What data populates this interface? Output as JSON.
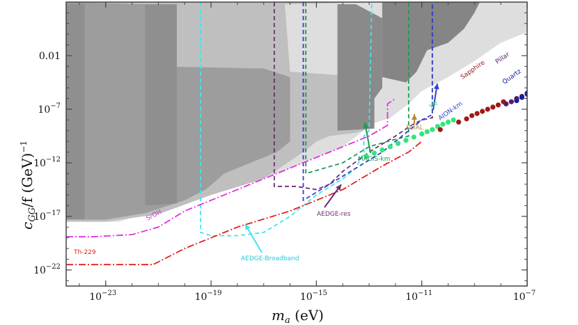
{
  "chart_data": {
    "type": "line",
    "xlabel_main": "m",
    "xlabel_sub": "a",
    "xlabel_unit": " (eV)",
    "ylabel_main": "c",
    "ylabel_sub": "GG",
    "ylabel_unit": "/f (GeV)",
    "ylabel_exp": "−1",
    "x_log_range": [
      -24.5,
      -7
    ],
    "y_log_range": [
      -23.5,
      3
    ],
    "x_ticks": [
      {
        "exp": -23,
        "base": "10",
        "sup": "−23"
      },
      {
        "exp": -19,
        "base": "10",
        "sup": "−19"
      },
      {
        "exp": -15,
        "base": "10",
        "sup": "−15"
      },
      {
        "exp": -11,
        "base": "10",
        "sup": "−11"
      },
      {
        "exp": -7,
        "base": "10",
        "sup": "−7"
      }
    ],
    "y_ticks": [
      {
        "exp": -2,
        "text": "0.01",
        "base": "",
        "sup": ""
      },
      {
        "exp": -7,
        "text": "",
        "base": "10",
        "sup": "−7"
      },
      {
        "exp": -12,
        "text": "",
        "base": "10",
        "sup": "−12"
      },
      {
        "exp": -17,
        "text": "",
        "base": "10",
        "sup": "−17"
      },
      {
        "exp": -22,
        "text": "",
        "base": "10",
        "sup": "−22"
      }
    ],
    "excluded_regions": [
      {
        "name": "light-excluded",
        "color": "#dedede",
        "points": [
          [
            -24.5,
            -17.5
          ],
          [
            -22.5,
            -17.5
          ],
          [
            -20.5,
            -16
          ],
          [
            -18.5,
            -14.5
          ],
          [
            -16.5,
            -13
          ],
          [
            -14,
            -10.5
          ],
          [
            -13.2,
            -9
          ],
          [
            -12.8,
            -8.3
          ],
          [
            -12.2,
            -7.8
          ],
          [
            -11.5,
            -6.5
          ],
          [
            -11,
            -5.3
          ],
          [
            -10,
            -4
          ],
          [
            -9,
            -2.5
          ],
          [
            -8,
            -0.8
          ],
          [
            -7,
            0.2
          ],
          [
            -7,
            3
          ],
          [
            -24.5,
            3
          ]
        ]
      },
      {
        "name": "medium-excluded",
        "color": "#bfbfbf",
        "points": [
          [
            -24.5,
            -17.5
          ],
          [
            -23,
            -17.5
          ],
          [
            -21,
            -16.8
          ],
          [
            -19,
            -15
          ],
          [
            -17,
            -13.5
          ],
          [
            -15.5,
            -11
          ],
          [
            -15,
            -10
          ],
          [
            -14.5,
            -9.5
          ],
          [
            -13.5,
            -9.2
          ],
          [
            -13,
            -8.8
          ],
          [
            -13,
            -4
          ],
          [
            -16,
            -3.5
          ],
          [
            -16.2,
            2.8
          ],
          [
            -12.5,
            3
          ],
          [
            -24.5,
            3
          ]
        ]
      },
      {
        "name": "dark-excluded",
        "color": "#9d9d9d",
        "points": [
          [
            -24.5,
            -17.3
          ],
          [
            -23,
            -17.3
          ],
          [
            -21.5,
            -16.7
          ],
          [
            -20,
            -15.5
          ],
          [
            -19.2,
            -14.5
          ],
          [
            -18.5,
            -13
          ],
          [
            -17.5,
            -12
          ],
          [
            -16.5,
            -11
          ],
          [
            -16,
            -10
          ],
          [
            -16,
            -4
          ],
          [
            -17,
            -3.2
          ],
          [
            -21,
            -3
          ],
          [
            -21.5,
            2.8
          ],
          [
            -24.5,
            3
          ]
        ]
      },
      {
        "name": "darker-band-a",
        "color": "#8f8f8f",
        "points": [
          [
            -24.5,
            -17.3
          ],
          [
            -23.8,
            -17.3
          ],
          [
            -23.8,
            2.8
          ],
          [
            -24.5,
            2.8
          ]
        ]
      },
      {
        "name": "darker-band-b",
        "color": "#8f8f8f",
        "points": [
          [
            -21.5,
            -16
          ],
          [
            -20.3,
            -15.8
          ],
          [
            -20.3,
            2.8
          ],
          [
            -21.5,
            2.8
          ]
        ]
      },
      {
        "name": "upper-center-block",
        "color": "#8a8a8a",
        "points": [
          [
            -14.2,
            -9
          ],
          [
            -12.8,
            -8.8
          ],
          [
            -12.8,
            -6
          ],
          [
            -12.5,
            -5
          ],
          [
            -12.5,
            1.5
          ],
          [
            -13.5,
            2.8
          ],
          [
            -14.2,
            2.8
          ]
        ]
      },
      {
        "name": "upper-right-blob",
        "color": "#858585",
        "points": [
          [
            -12.5,
            -4
          ],
          [
            -11.6,
            -4.5
          ],
          [
            -11.2,
            -3.5
          ],
          [
            -10.8,
            -1.5
          ],
          [
            -10,
            -0.8
          ],
          [
            -9.4,
            0.5
          ],
          [
            -9,
            2
          ],
          [
            -8.8,
            3
          ],
          [
            -12.5,
            3
          ]
        ]
      }
    ],
    "series": [
      {
        "name": "AEDGE-Broadband",
        "color": "#3ee6f0",
        "dash": "6,4",
        "points": [
          [
            -19.4,
            3
          ],
          [
            -19.4,
            -18.5
          ],
          [
            -19,
            -18.8
          ],
          [
            -18,
            -18.8
          ],
          [
            -17,
            -18.5
          ],
          [
            -16,
            -17
          ],
          [
            -15,
            -15
          ],
          [
            -14,
            -13.5
          ],
          [
            -13.5,
            -12.5
          ],
          [
            -13.2,
            -11
          ],
          [
            -13.2,
            -9.5
          ],
          [
            -13,
            -9
          ],
          [
            -12.9,
            3
          ]
        ]
      },
      {
        "name": "AEDGE-res",
        "color": "#6f2c73",
        "dash": "6,4",
        "points": [
          [
            -16.6,
            3
          ],
          [
            -16.6,
            -14.2
          ],
          [
            -15.8,
            -14.2
          ],
          [
            -15,
            -14.5
          ],
          [
            -14.5,
            -14
          ],
          [
            -14,
            -12.8
          ],
          [
            -13,
            -11
          ],
          [
            -12,
            -9.5
          ],
          [
            -11.4,
            -8.5
          ],
          [
            -11,
            -8
          ],
          [
            -10.6,
            -7.8
          ],
          [
            -10.6,
            3
          ]
        ]
      },
      {
        "name": "MAGIS-km",
        "color": "#1a9a55",
        "dash": "6,4",
        "points": [
          [
            -15.4,
            3
          ],
          [
            -15.4,
            -13
          ],
          [
            -14,
            -12
          ],
          [
            -13,
            -10.5
          ],
          [
            -12,
            -9.8
          ],
          [
            -11.5,
            -9.5
          ],
          [
            -11.5,
            3
          ]
        ]
      },
      {
        "name": "AION-km",
        "color": "#3040d0",
        "dash": "6,4",
        "points": [
          [
            -15.5,
            3
          ],
          [
            -15.5,
            -15.5
          ],
          [
            -14.5,
            -14
          ],
          [
            -13.5,
            -12.5
          ],
          [
            -12.5,
            -11
          ],
          [
            -11.5,
            -9
          ],
          [
            -11,
            -8
          ],
          [
            -10.6,
            -7.5
          ],
          [
            -10.6,
            3
          ]
        ]
      },
      {
        "name": "SrOH",
        "color": "#e030e0",
        "dash": "10,3,2,3",
        "points": [
          [
            -24.5,
            -18.9
          ],
          [
            -23.5,
            -18.9
          ],
          [
            -22,
            -18.7
          ],
          [
            -21,
            -18
          ],
          [
            -20,
            -16.5
          ],
          [
            -18,
            -14.5
          ],
          [
            -16,
            -12.5
          ],
          [
            -14.5,
            -11
          ],
          [
            -13,
            -9.5
          ],
          [
            -12.3,
            -8.5
          ],
          [
            -12.3,
            -6.5
          ],
          [
            -12,
            -6
          ]
        ]
      },
      {
        "name": "Th-229",
        "color": "#e02020",
        "dash": "10,3,2,3",
        "points": [
          [
            -24.5,
            -21.5
          ],
          [
            -22,
            -21.5
          ],
          [
            -21.2,
            -21.5
          ],
          [
            -20,
            -20
          ],
          [
            -18,
            -18
          ],
          [
            -16,
            -16.5
          ],
          [
            -14,
            -14.5
          ],
          [
            -12.5,
            -12.3
          ],
          [
            -11.5,
            -11
          ],
          [
            -11,
            -10
          ]
        ]
      }
    ],
    "dot_groups": [
      {
        "name": "He",
        "color": "#33e57a",
        "points": [
          [
            -13.1,
            -11.4
          ],
          [
            -12.8,
            -11.1
          ],
          [
            -12.5,
            -10.8
          ],
          [
            -12.2,
            -10.5
          ],
          [
            -11.9,
            -10.2
          ],
          [
            -11.6,
            -9.9
          ],
          [
            -11.3,
            -9.6
          ],
          [
            -11,
            -9.3
          ],
          [
            -10.8,
            -9.1
          ],
          [
            -10.6,
            -8.9
          ],
          [
            -10.4,
            -8.6
          ],
          [
            -10.2,
            -8.4
          ],
          [
            -10,
            -8.2
          ],
          [
            -9.8,
            -8
          ]
        ]
      },
      {
        "name": "Sapphire",
        "color": "#a01818",
        "points": [
          [
            -10.3,
            -8.9
          ],
          [
            -9.6,
            -8.2
          ],
          [
            -9.3,
            -7.9
          ],
          [
            -9.1,
            -7.6
          ],
          [
            -8.9,
            -7.4
          ],
          [
            -8.7,
            -7.2
          ],
          [
            -8.5,
            -7
          ],
          [
            -8.3,
            -6.8
          ],
          [
            -8.1,
            -6.6
          ],
          [
            -7.9,
            -6.3
          ]
        ]
      },
      {
        "name": "Pillar",
        "color": "#5a1a6a",
        "points": [
          [
            -7.8,
            -6.5
          ],
          [
            -7.6,
            -6.3
          ],
          [
            -7.4,
            -6
          ],
          [
            -7.2,
            -5.8
          ],
          [
            -7,
            -5.6
          ]
        ]
      },
      {
        "name": "Quartz",
        "color": "#1020a0",
        "points": [
          [
            -7.4,
            -6.2
          ],
          [
            -7.2,
            -5.9
          ],
          [
            -7,
            -5.5
          ]
        ]
      }
    ],
    "annotations": [
      {
        "text": "Th-229",
        "color": "#e02020"
      },
      {
        "text": "SrOH",
        "color": "#c040c0"
      },
      {
        "text": "AEDGE-Broadband",
        "color": "#3ee6f0"
      },
      {
        "text": "AEDGE-res",
        "color": "#6f2c73"
      },
      {
        "text": "MAGIS-km",
        "color": "#1a9a55"
      },
      {
        "text": "DUAL",
        "color": "#b88a30"
      },
      {
        "text": "He",
        "color": "#33e57a"
      },
      {
        "text": "AION-km",
        "color": "#3040d0"
      },
      {
        "text": "Sapphire",
        "color": "#a01818"
      },
      {
        "text": "Pillar",
        "color": "#5a1a6a"
      },
      {
        "text": "Quartz",
        "color": "#1020a0"
      }
    ]
  }
}
